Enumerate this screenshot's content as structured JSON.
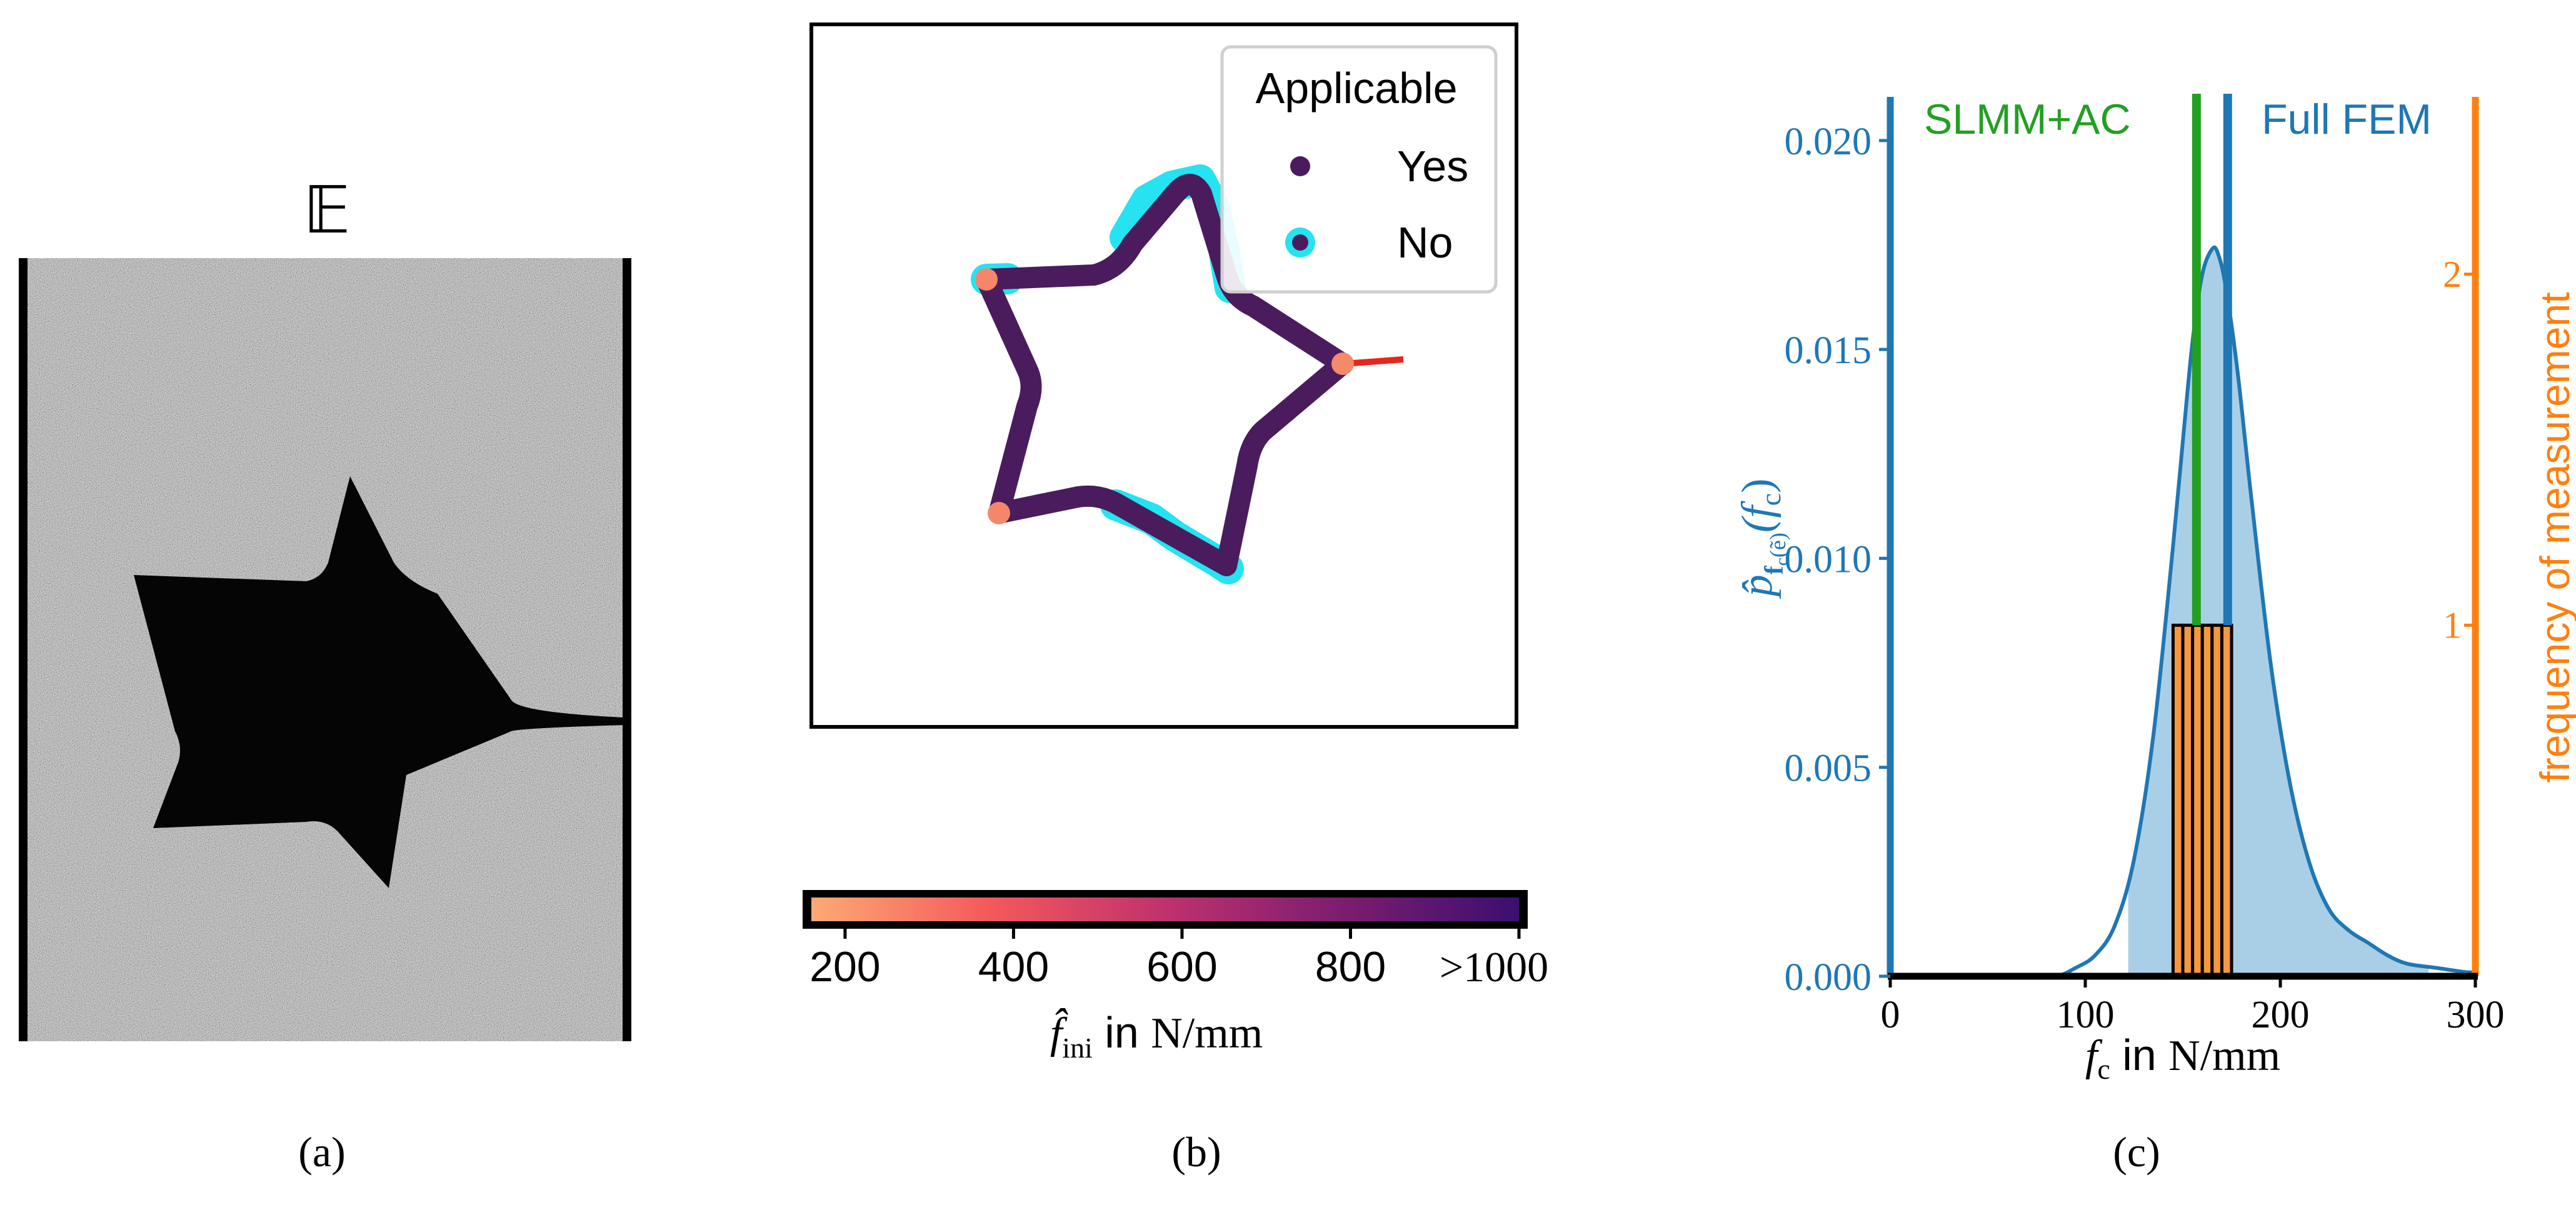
{
  "panels": {
    "a": {
      "caption": "(a)",
      "symbol": "𝔼"
    },
    "b": {
      "caption": "(b)"
    },
    "c": {
      "caption": "(c)"
    }
  },
  "colors": {
    "kde_line": "#1f77b4",
    "kde_fill": "#a9cfe6",
    "left_axis": "#1f77b4",
    "right_axis": "#ff7f0e",
    "hist_fill": "#f7983d",
    "slmm": "#22a022",
    "full_fem": "#1f77b4",
    "star_path": "#4a1c5e",
    "not_applicable_halo": "#25e3f0",
    "crack": "#e8261e"
  },
  "legend": {
    "title": "Applicable",
    "items": [
      {
        "label": "Yes",
        "marker": "dark-dot"
      },
      {
        "label": "No",
        "marker": "cyan-ring-dot"
      }
    ]
  },
  "colorbar": {
    "ticks": [
      "200",
      "400",
      "600",
      "800",
      ">1000"
    ],
    "tick_values": [
      200,
      400,
      600,
      800,
      1000
    ],
    "range": [
      160,
      1000
    ],
    "label_symbol": "f̂",
    "label_subscript": "ini",
    "label_mid": " in ",
    "label_unit": "N/mm",
    "gradient": [
      "#fcaa74",
      "#f5595b",
      "#c0316e",
      "#7c1d6f",
      "#3b0f6f"
    ]
  },
  "chart_data": {
    "type": "area",
    "xlabel_symbol": "f",
    "xlabel_subscript": "c",
    "xlabel_mid": " in ",
    "xlabel_unit": "N/mm",
    "ylabel_left": "p̂ f_c(ẽ) (f_c)",
    "ylabel_left_parts": {
      "p": "p̂",
      "sub1": "f",
      "sub2": "c",
      "sub3": "(ẽ)",
      "arg": "(f",
      "arg_sub": "c",
      "close": ")"
    },
    "ylabel_right": "frequency of measurement",
    "xlim": [
      0,
      300
    ],
    "ylim_left": [
      0,
      0.021
    ],
    "ylim_right": [
      0,
      2.5
    ],
    "x_ticks": [
      0,
      100,
      200,
      300
    ],
    "y_ticks_left": [
      "0.000",
      "0.005",
      "0.010",
      "0.015",
      "0.020"
    ],
    "y_tick_values_left": [
      0.0,
      0.005,
      0.01,
      0.015,
      0.02
    ],
    "y_ticks_right": [
      "1",
      "2"
    ],
    "y_tick_values_right": [
      1,
      2
    ],
    "kde": {
      "x": [
        70,
        85,
        95,
        105,
        115,
        125,
        135,
        145,
        150,
        155,
        160,
        165,
        168,
        172,
        178,
        185,
        195,
        205,
        215,
        225,
        235,
        245,
        255,
        265,
        280,
        295,
        300
      ],
      "y": [
        0.0,
        0.0,
        0.0002,
        0.0005,
        0.0012,
        0.0028,
        0.0058,
        0.0103,
        0.0128,
        0.0152,
        0.0168,
        0.0174,
        0.0173,
        0.0165,
        0.0145,
        0.0115,
        0.0075,
        0.0046,
        0.0027,
        0.0016,
        0.0011,
        0.0008,
        0.0005,
        0.0003,
        0.0002,
        0.0001,
        0.0001
      ],
      "fill_range": [
        122,
        276
      ]
    },
    "histogram": {
      "bins": [
        [
          145,
          150
        ],
        [
          150,
          155
        ],
        [
          155,
          160
        ],
        [
          160,
          165
        ],
        [
          165,
          170
        ],
        [
          170,
          175
        ]
      ],
      "counts": [
        1,
        1,
        1,
        1,
        1,
        1
      ]
    },
    "vlines": [
      {
        "name": "SLMM+AC",
        "x": 157,
        "label": "SLMM+AC",
        "color": "#22a022"
      },
      {
        "name": "Full FEM",
        "x": 173,
        "label": "Full FEM",
        "color": "#1f77b4"
      }
    ]
  }
}
